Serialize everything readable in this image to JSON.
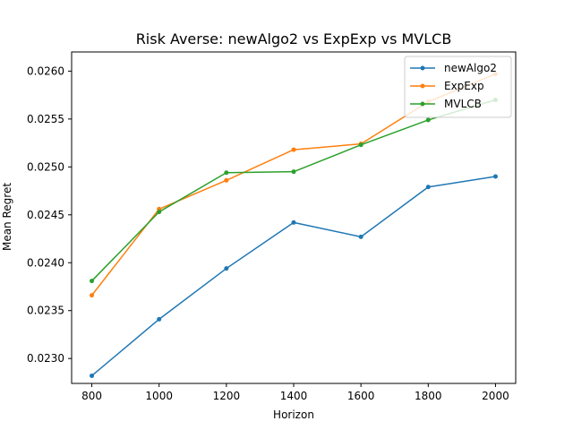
{
  "chart_data": {
    "type": "line",
    "title": "Risk Averse: newAlgo2 vs ExpExp vs MVLCB",
    "xlabel": "Horizon",
    "ylabel": "Mean Regret",
    "x": [
      800,
      1000,
      1200,
      1400,
      1600,
      1800,
      2000
    ],
    "xlim": [
      740,
      2060
    ],
    "ylim": [
      0.02274,
      0.0262
    ],
    "xticks": [
      800,
      1000,
      1200,
      1400,
      1600,
      1800,
      2000
    ],
    "xtick_labels": [
      "800",
      "1000",
      "1200",
      "1400",
      "1600",
      "1800",
      "2000"
    ],
    "yticks": [
      0.023,
      0.0235,
      0.024,
      0.0245,
      0.025,
      0.0255,
      0.026
    ],
    "ytick_labels": [
      "0.0230",
      "0.0235",
      "0.0240",
      "0.0245",
      "0.0250",
      "0.0255",
      "0.0260"
    ],
    "grid": false,
    "legend_position": "top-right",
    "series": [
      {
        "name": "newAlgo2",
        "color": "#1f77b4",
        "values": [
          0.02282,
          0.02341,
          0.02394,
          0.02442,
          0.02427,
          0.02479,
          0.0249
        ]
      },
      {
        "name": "ExpExp",
        "color": "#ff7f0e",
        "values": [
          0.02366,
          0.02456,
          0.02486,
          0.02518,
          0.02524,
          0.02568,
          0.02597
        ]
      },
      {
        "name": "MVLCB",
        "color": "#2ca02c",
        "values": [
          0.02381,
          0.02453,
          0.02494,
          0.02495,
          0.02523,
          0.02549,
          0.0257
        ]
      }
    ]
  }
}
